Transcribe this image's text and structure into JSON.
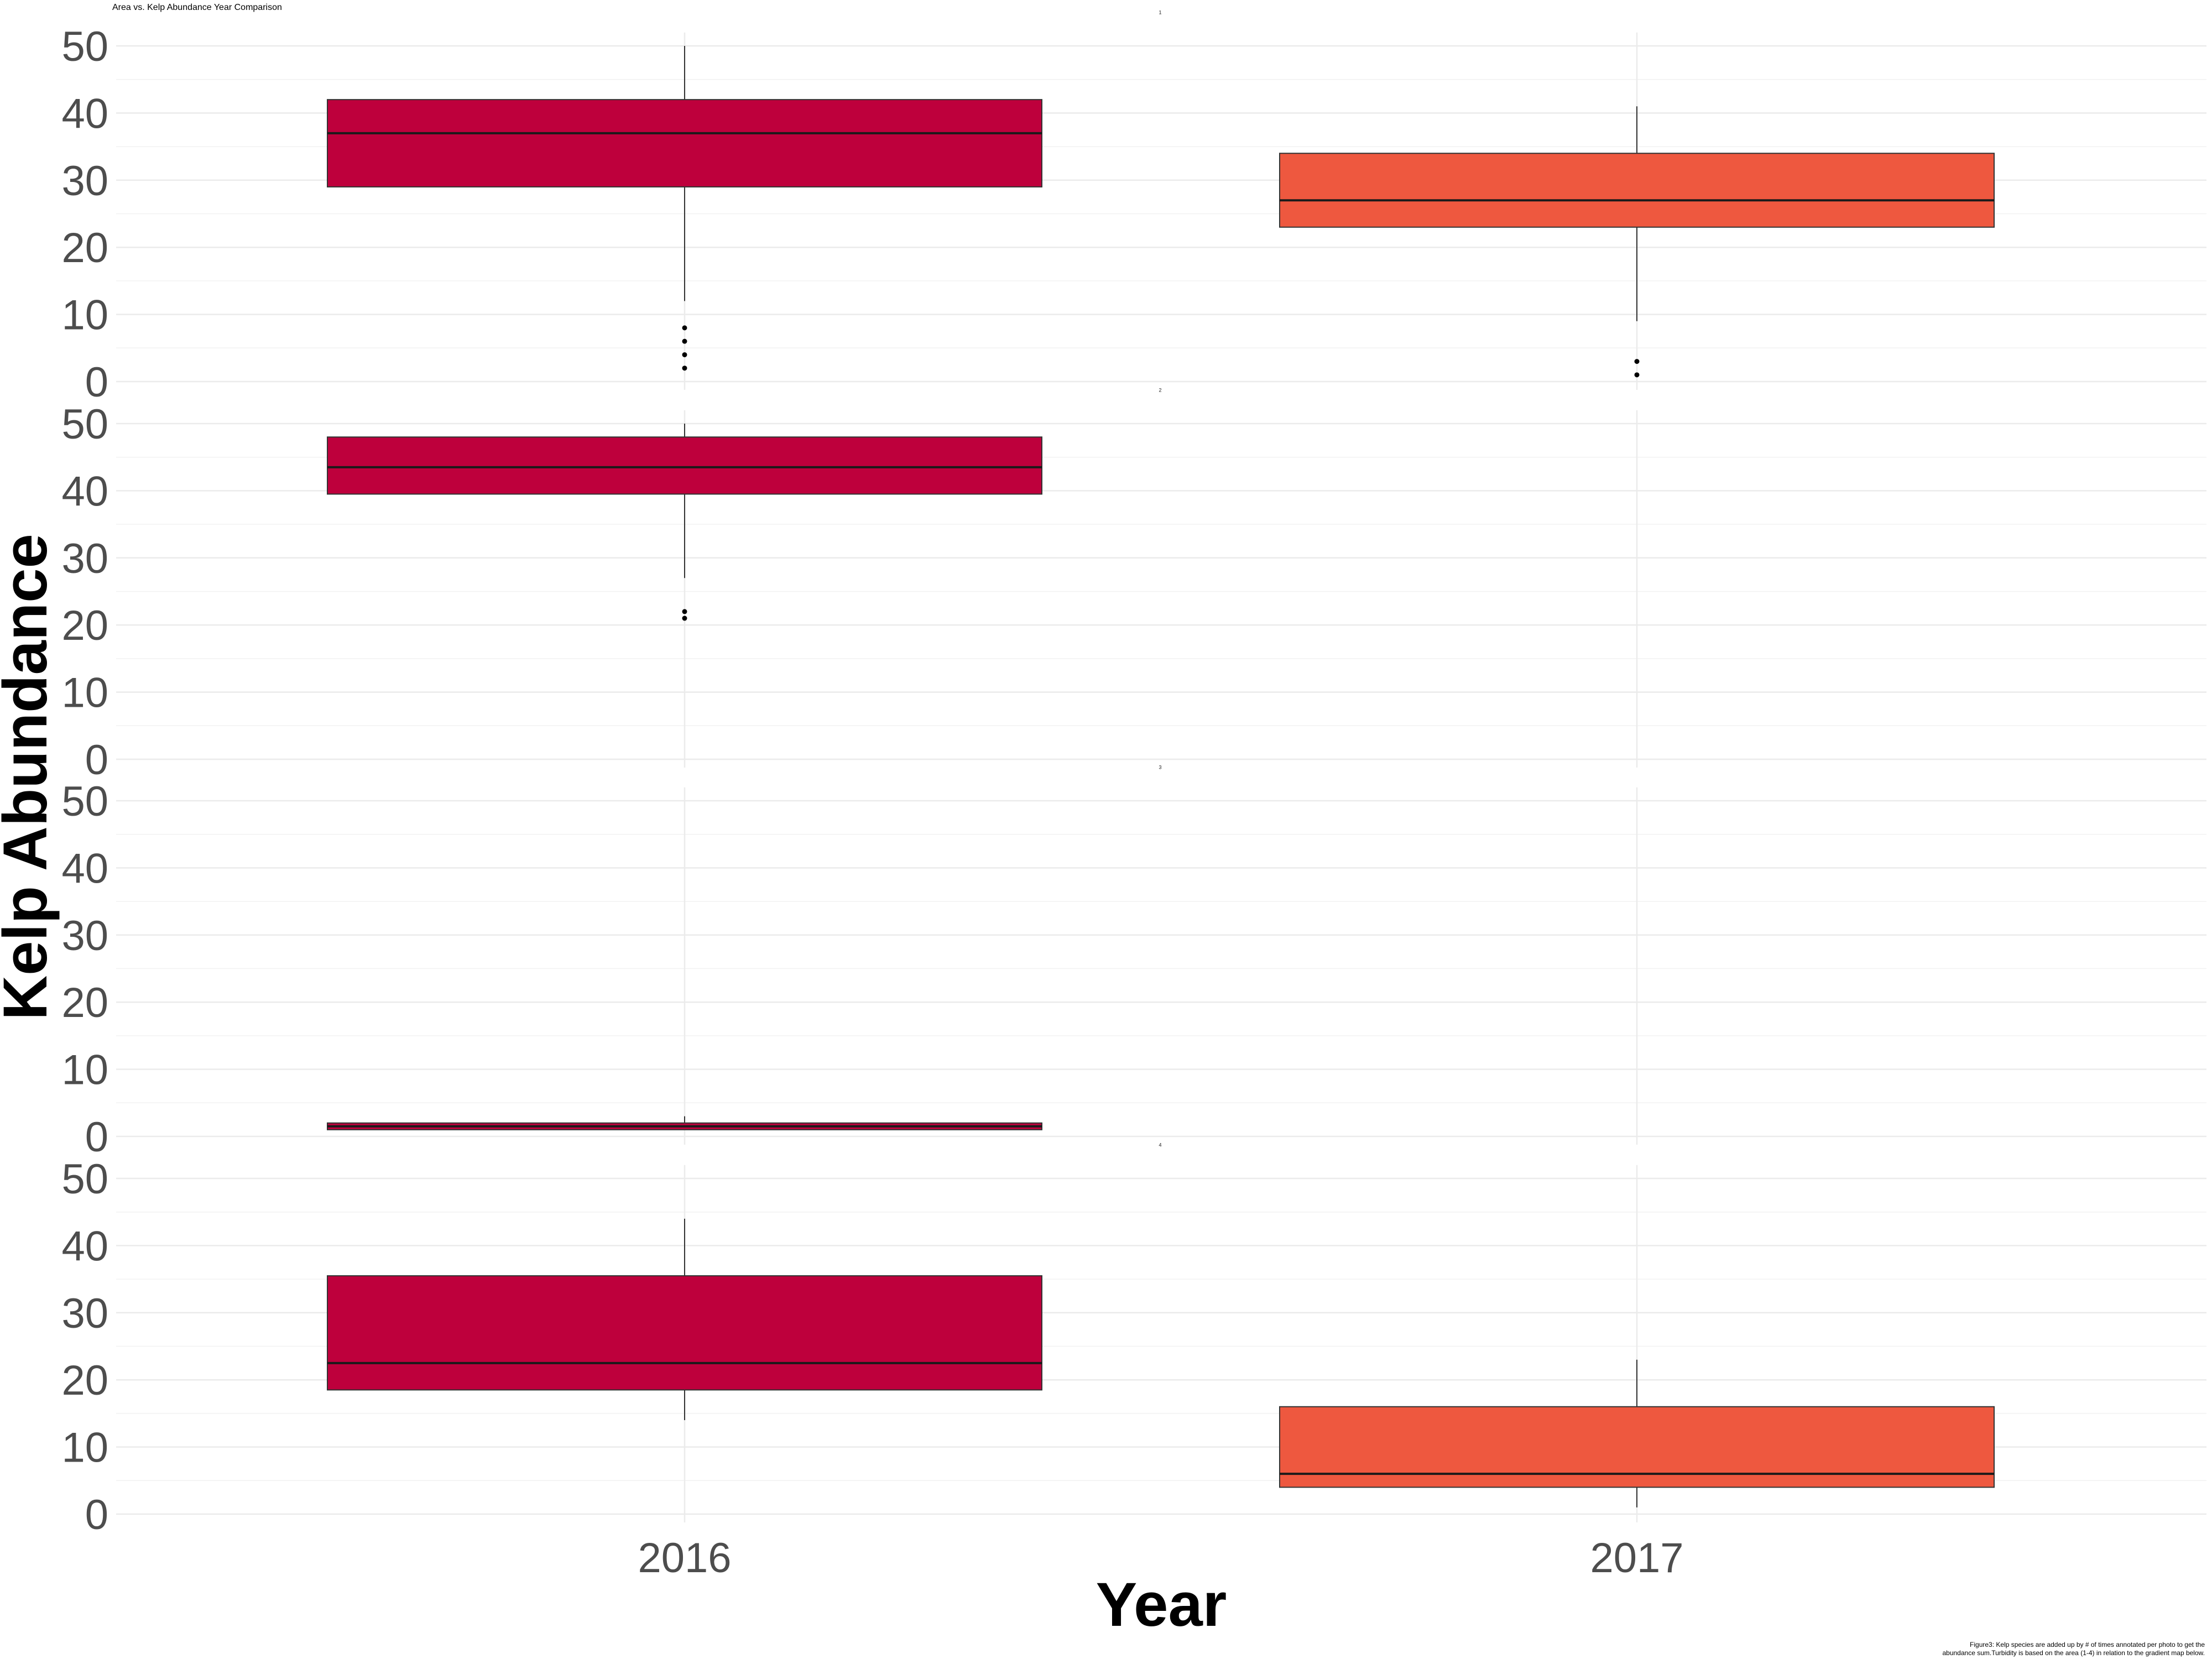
{
  "chart_data": {
    "type": "boxplot",
    "title": "Area vs. Kelp Abundance Year Comparison",
    "xlabel": "Year",
    "ylabel": "Kelp Abundance",
    "caption_lines": [
      "Figure3: Kelp species are added up by # of times annotated per photo to get the",
      "abundance sum.Turbidity is based on the area (1-4) in relation to the gradient map below."
    ],
    "categories": [
      "2016",
      "2017"
    ],
    "ylim": [
      0,
      52
    ],
    "yticks": [
      0,
      10,
      20,
      30,
      40,
      50
    ],
    "grid": true,
    "colors": {
      "2016": "#BE003C",
      "2017": "#EE583F"
    },
    "panels": [
      {
        "label": "1",
        "boxes": [
          {
            "x": "2016",
            "whisker_low": 12,
            "q1": 29,
            "median": 37,
            "q3": 42,
            "whisker_high": 50,
            "outliers": [
              2,
              4,
              6,
              8
            ]
          },
          {
            "x": "2017",
            "whisker_low": 9,
            "q1": 23,
            "median": 27,
            "q3": 34,
            "whisker_high": 41,
            "outliers": [
              1,
              3
            ]
          }
        ]
      },
      {
        "label": "2",
        "boxes": [
          {
            "x": "2016",
            "whisker_low": 27,
            "q1": 39.5,
            "median": 43.5,
            "q3": 48,
            "whisker_high": 50,
            "outliers": [
              21,
              22
            ]
          }
        ]
      },
      {
        "label": "3",
        "boxes": [
          {
            "x": "2016",
            "whisker_low": 1,
            "q1": 1,
            "median": 1.5,
            "q3": 2,
            "whisker_high": 3,
            "outliers": []
          }
        ]
      },
      {
        "label": "4",
        "boxes": [
          {
            "x": "2016",
            "whisker_low": 14,
            "q1": 18.5,
            "median": 22.5,
            "q3": 35.5,
            "whisker_high": 44,
            "outliers": []
          },
          {
            "x": "2017",
            "whisker_low": 1,
            "q1": 4,
            "median": 6,
            "q3": 16,
            "whisker_high": 23,
            "outliers": []
          }
        ]
      }
    ]
  }
}
